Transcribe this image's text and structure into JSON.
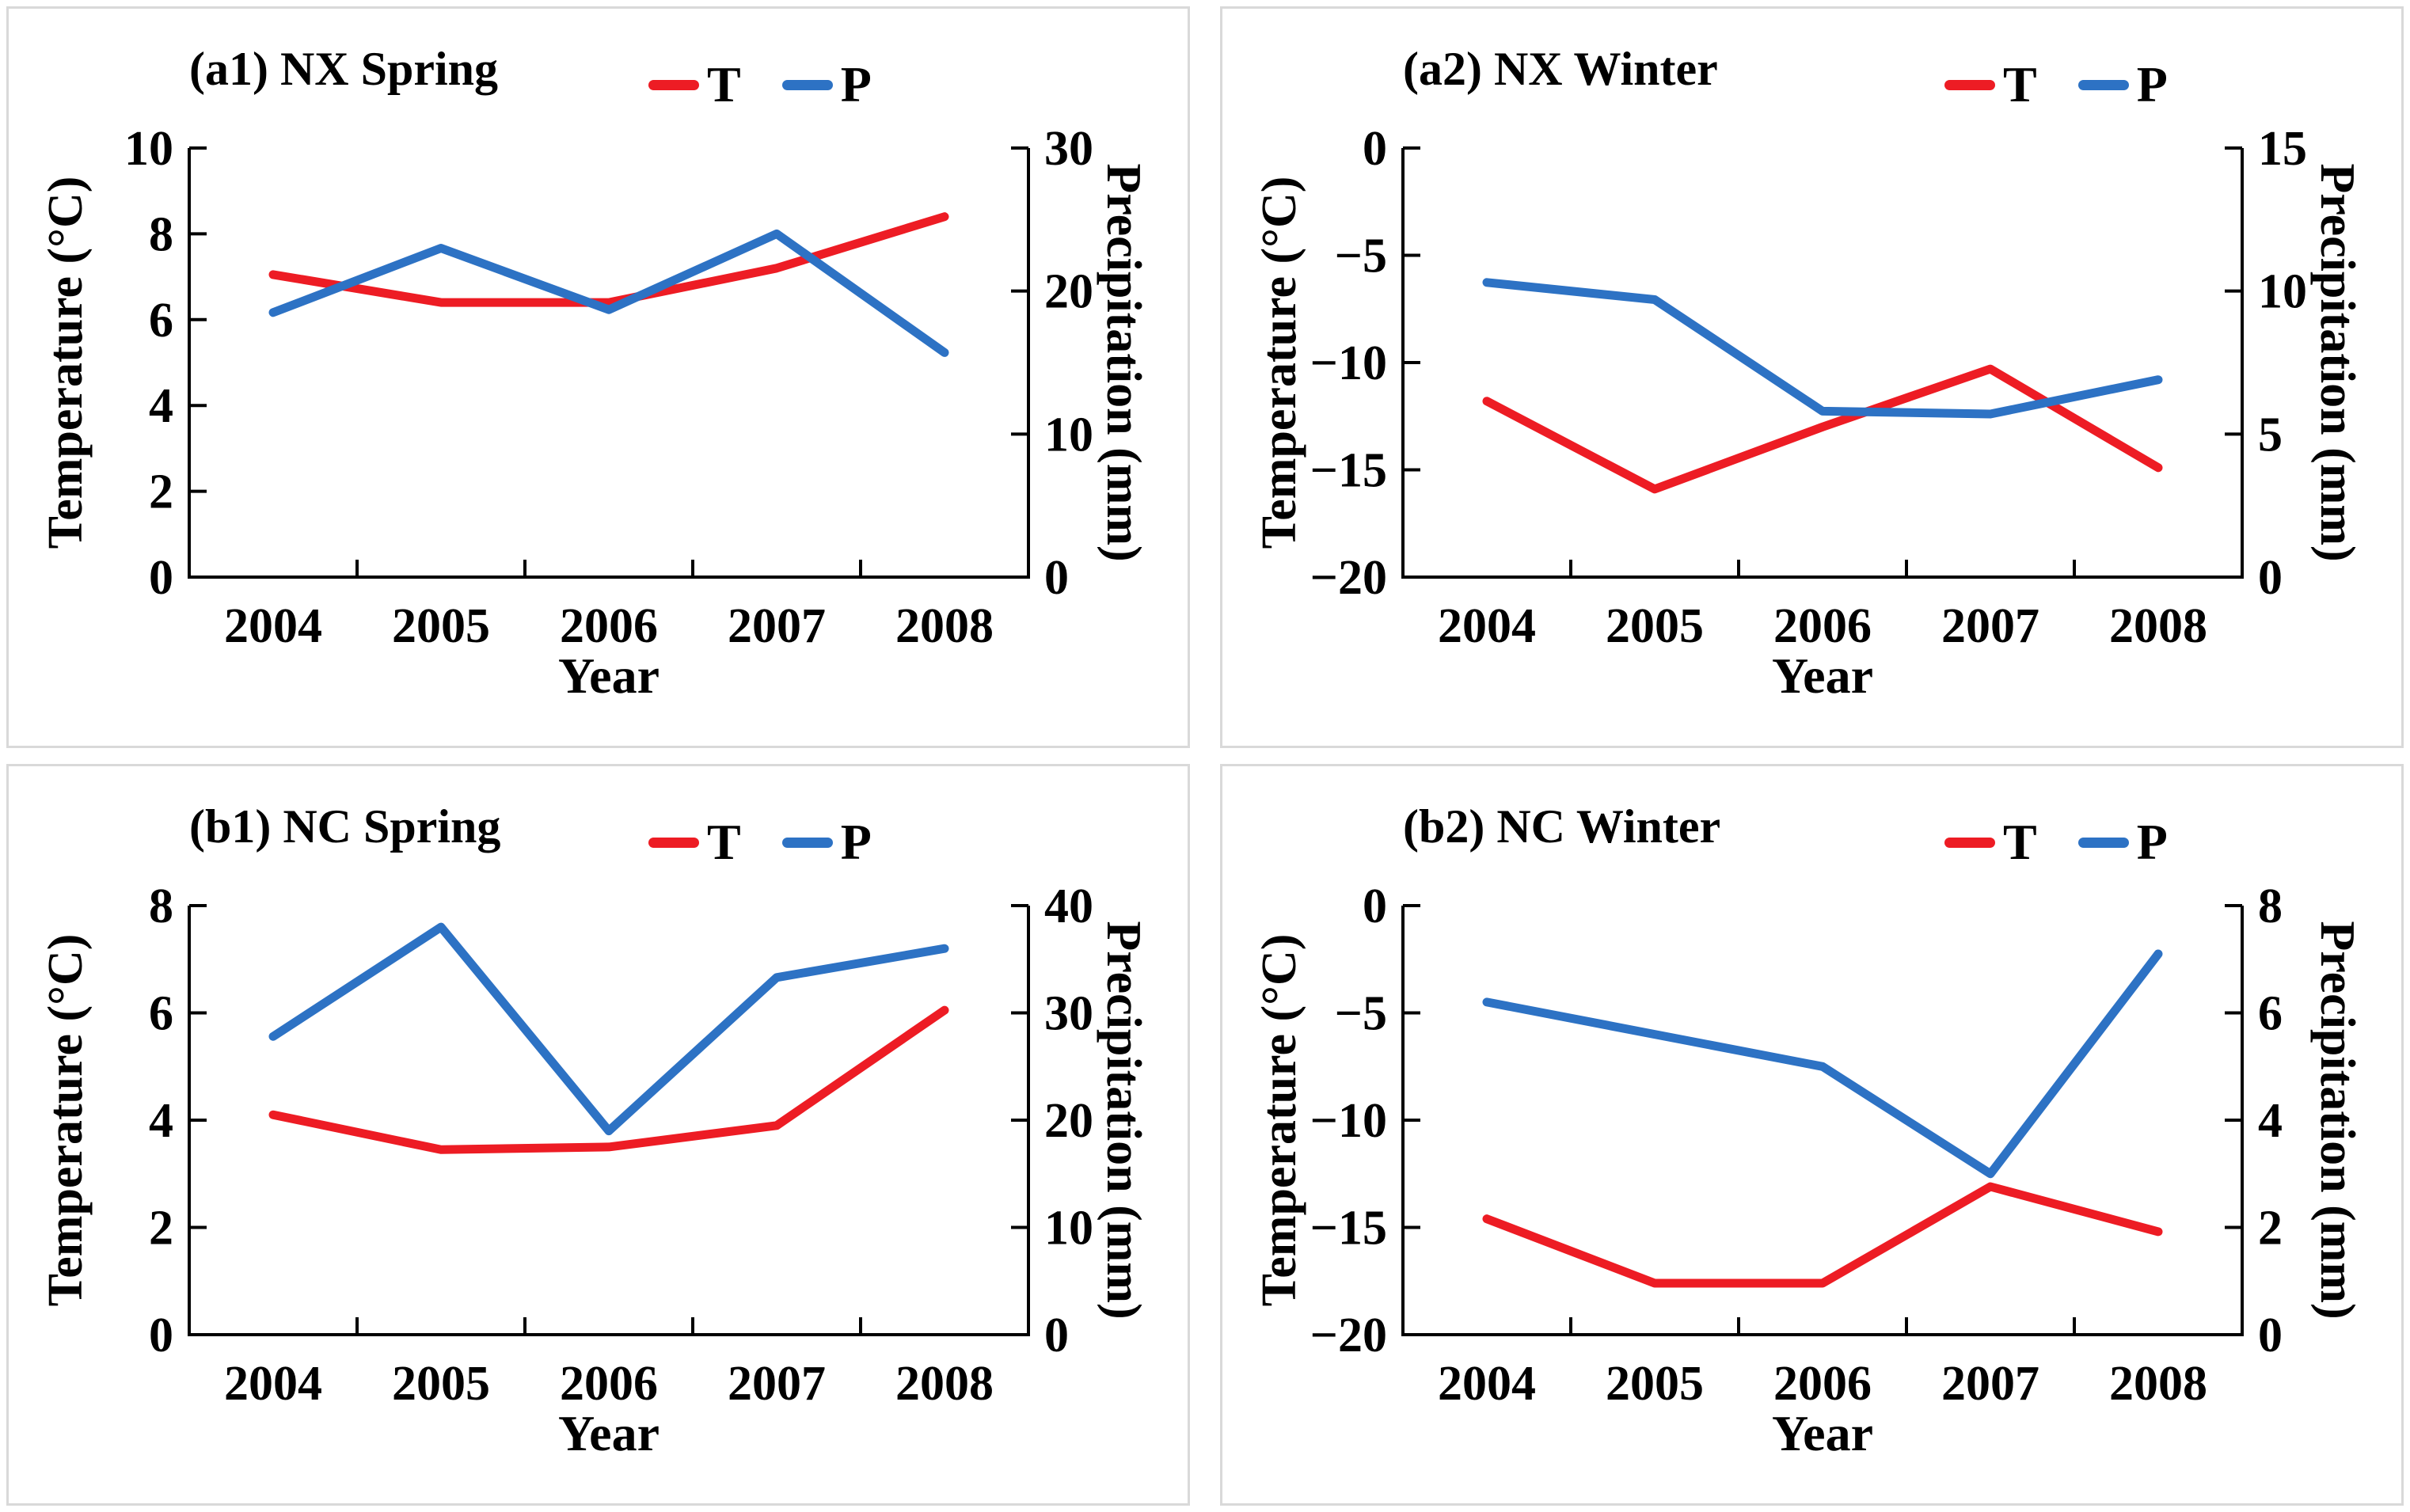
{
  "page": {
    "background": "#ffffff",
    "panel_border_color": "#d9d9d9",
    "axis_color": "#000000"
  },
  "colors": {
    "temperature_line": "#ED1C24",
    "precipitation_line": "#2D72C4"
  },
  "chart_data": [
    {
      "type": "line",
      "panel_id": "a1",
      "title": "(a1) NX Spring",
      "xlabel": "Year",
      "ylabel_left": "Temperature (°C)",
      "ylabel_right": "Precipitation (mm)",
      "categories": [
        "2004",
        "2005",
        "2006",
        "2007",
        "2008"
      ],
      "ylim_left": [
        0,
        10
      ],
      "yticks_left": [
        {
          "v": 0,
          "label": "0"
        },
        {
          "v": 2,
          "label": "2"
        },
        {
          "v": 4,
          "label": "4"
        },
        {
          "v": 6,
          "label": "6"
        },
        {
          "v": 8,
          "label": "8"
        },
        {
          "v": 10,
          "label": "10"
        }
      ],
      "ylim_right": [
        0,
        30
      ],
      "yticks_right": [
        {
          "v": 0,
          "label": "0"
        },
        {
          "v": 10,
          "label": "10"
        },
        {
          "v": 20,
          "label": "20"
        },
        {
          "v": 30,
          "label": "30"
        }
      ],
      "grid": false,
      "legend_position": "top-right",
      "series": [
        {
          "name": "T",
          "axis": "left",
          "color": "#ED1C24",
          "values": [
            7.05,
            6.4,
            6.4,
            7.2,
            8.4
          ]
        },
        {
          "name": "P",
          "axis": "right",
          "color": "#2D72C4",
          "values": [
            18.5,
            23.0,
            18.7,
            24.0,
            15.7
          ]
        }
      ]
    },
    {
      "type": "line",
      "panel_id": "a2",
      "title": "(a2) NX Winter",
      "xlabel": "Year",
      "ylabel_left": "Temperature (°C)",
      "ylabel_right": "Precipitation (mm)",
      "categories": [
        "2004",
        "2005",
        "2006",
        "2007",
        "2008"
      ],
      "ylim_left": [
        -20,
        0
      ],
      "yticks_left": [
        {
          "v": -20,
          "label": "−20"
        },
        {
          "v": -15,
          "label": "−15"
        },
        {
          "v": -10,
          "label": "−10"
        },
        {
          "v": -5,
          "label": "−5"
        },
        {
          "v": 0,
          "label": "0"
        }
      ],
      "ylim_right": [
        0,
        15
      ],
      "yticks_right": [
        {
          "v": 0,
          "label": "0"
        },
        {
          "v": 5,
          "label": "5"
        },
        {
          "v": 10,
          "label": "10"
        },
        {
          "v": 15,
          "label": "15"
        }
      ],
      "grid": false,
      "legend_position": "top-right",
      "series": [
        {
          "name": "T",
          "axis": "left",
          "color": "#ED1C24",
          "values": [
            -11.8,
            -15.9,
            -13.0,
            -10.3,
            -14.9
          ]
        },
        {
          "name": "P",
          "axis": "right",
          "color": "#2D72C4",
          "values": [
            10.3,
            9.7,
            5.8,
            5.7,
            6.9
          ]
        }
      ]
    },
    {
      "type": "line",
      "panel_id": "b1",
      "title": "(b1) NC Spring",
      "xlabel": "Year",
      "ylabel_left": "Temperature (°C)",
      "ylabel_right": "Precipitation (mm)",
      "categories": [
        "2004",
        "2005",
        "2006",
        "2007",
        "2008"
      ],
      "ylim_left": [
        0,
        8
      ],
      "yticks_left": [
        {
          "v": 0,
          "label": "0"
        },
        {
          "v": 2,
          "label": "2"
        },
        {
          "v": 4,
          "label": "4"
        },
        {
          "v": 6,
          "label": "6"
        },
        {
          "v": 8,
          "label": "8"
        }
      ],
      "ylim_right": [
        0,
        40
      ],
      "yticks_right": [
        {
          "v": 0,
          "label": "0"
        },
        {
          "v": 10,
          "label": "10"
        },
        {
          "v": 20,
          "label": "20"
        },
        {
          "v": 30,
          "label": "30"
        },
        {
          "v": 40,
          "label": "40"
        }
      ],
      "grid": false,
      "legend_position": "top-right",
      "series": [
        {
          "name": "T",
          "axis": "left",
          "color": "#ED1C24",
          "values": [
            4.1,
            3.45,
            3.5,
            3.9,
            6.05
          ]
        },
        {
          "name": "P",
          "axis": "right",
          "color": "#2D72C4",
          "values": [
            27.8,
            38.0,
            19.0,
            33.3,
            36.0
          ]
        }
      ]
    },
    {
      "type": "line",
      "panel_id": "b2",
      "title": "(b2) NC Winter",
      "xlabel": "Year",
      "ylabel_left": "Temperature (°C)",
      "ylabel_right": "Precipitation (mm)",
      "categories": [
        "2004",
        "2005",
        "2006",
        "2007",
        "2008"
      ],
      "ylim_left": [
        -20,
        0
      ],
      "yticks_left": [
        {
          "v": -20,
          "label": "−20"
        },
        {
          "v": -15,
          "label": "−15"
        },
        {
          "v": -10,
          "label": "−10"
        },
        {
          "v": -5,
          "label": "−5"
        },
        {
          "v": 0,
          "label": "0"
        }
      ],
      "ylim_right": [
        0,
        8
      ],
      "yticks_right": [
        {
          "v": 0,
          "label": "0"
        },
        {
          "v": 2,
          "label": "2"
        },
        {
          "v": 4,
          "label": "4"
        },
        {
          "v": 6,
          "label": "6"
        },
        {
          "v": 8,
          "label": "8"
        }
      ],
      "grid": false,
      "legend_position": "top-right",
      "series": [
        {
          "name": "T",
          "axis": "left",
          "color": "#ED1C24",
          "values": [
            -14.6,
            -17.6,
            -17.6,
            -13.1,
            -15.2
          ]
        },
        {
          "name": "P",
          "axis": "right",
          "color": "#2D72C4",
          "values": [
            6.2,
            5.6,
            5.0,
            3.0,
            7.1
          ]
        }
      ]
    }
  ]
}
